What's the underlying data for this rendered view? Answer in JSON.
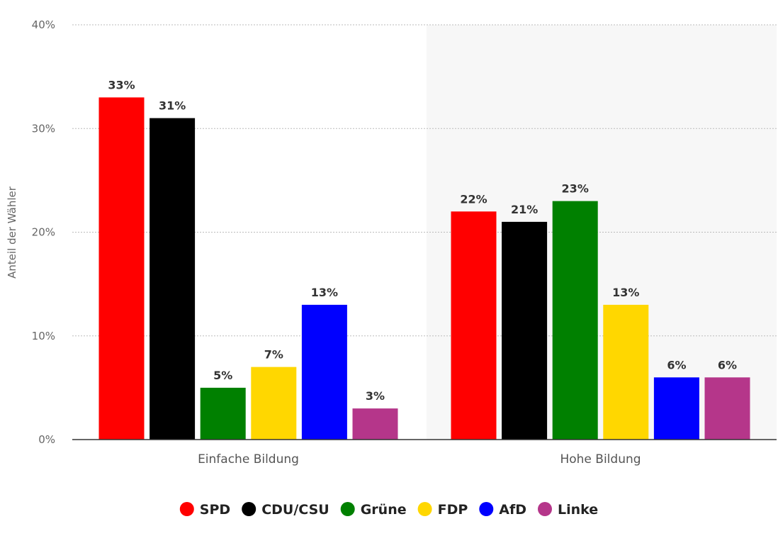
{
  "chart_data": {
    "type": "bar",
    "title": "",
    "xlabel": "",
    "ylabel": "Anteil der Wähler",
    "ylim": [
      0,
      40
    ],
    "yticks": [
      0,
      10,
      20,
      30,
      40
    ],
    "ytick_labels": [
      "0%",
      "10%",
      "20%",
      "30%",
      "40%"
    ],
    "grid": true,
    "legend_position": "bottom-center",
    "categories": [
      "Einfache Bildung",
      "Hohe Bildung"
    ],
    "series": [
      {
        "name": "SPD",
        "color": "#ff0000",
        "values": [
          33,
          22
        ],
        "labels": [
          "33%",
          "22%"
        ]
      },
      {
        "name": "CDU/CSU",
        "color": "#000000",
        "values": [
          31,
          21
        ],
        "labels": [
          "31%",
          "21%"
        ]
      },
      {
        "name": "Grüne",
        "color": "#008000",
        "values": [
          5,
          23
        ],
        "labels": [
          "5%",
          "23%"
        ]
      },
      {
        "name": "FDP",
        "color": "#ffd700",
        "values": [
          7,
          13
        ],
        "labels": [
          "7%",
          "13%"
        ]
      },
      {
        "name": "AfD",
        "color": "#0000ff",
        "values": [
          13,
          6
        ],
        "labels": [
          "13%",
          "6%"
        ]
      },
      {
        "name": "Linke",
        "color": "#b5368a",
        "values": [
          3,
          6
        ],
        "labels": [
          "3%",
          "6%"
        ]
      }
    ]
  }
}
